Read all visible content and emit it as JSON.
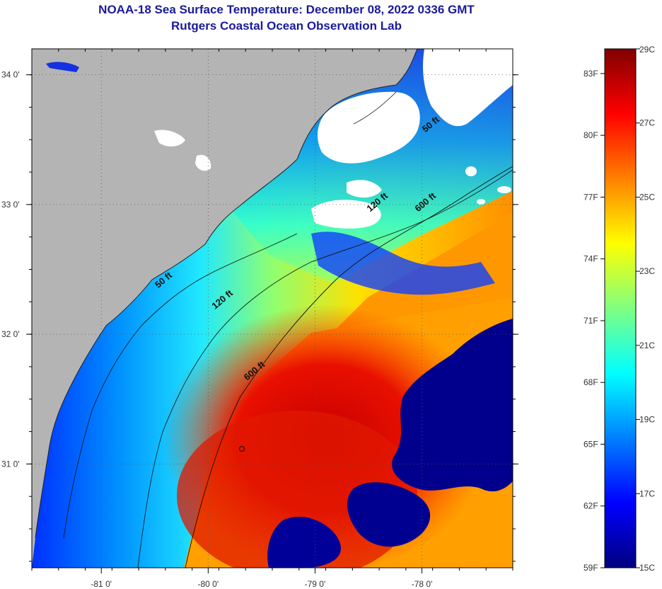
{
  "title": "NOAA-18 Sea Surface Temperature:  December 08, 2022 0336 GMT",
  "subtitle": "Rutgers Coastal Ocean Observation Lab",
  "map": {
    "lon_range": [
      -81.65,
      -77.15
    ],
    "lat_range": [
      30.2,
      34.2
    ],
    "lon_ticks": [
      {
        "value": -81,
        "label": "-81 0'"
      },
      {
        "value": -80,
        "label": "-80 0'"
      },
      {
        "value": -79,
        "label": "-79 0'"
      },
      {
        "value": -78,
        "label": "-78 0'"
      }
    ],
    "lat_ticks": [
      {
        "value": 34,
        "label": "34 0'"
      },
      {
        "value": 33,
        "label": "33 0'"
      },
      {
        "value": 32,
        "label": "32 0'"
      },
      {
        "value": 31,
        "label": "31 0'"
      }
    ],
    "contour_labels": [
      {
        "text": "50 ft",
        "lon": -77.9,
        "lat": 33.6
      },
      {
        "text": "120 ft",
        "lon": -78.4,
        "lat": 33.0
      },
      {
        "text": "600 ft",
        "lon": -77.95,
        "lat": 33.0
      },
      {
        "text": "50 ft",
        "lon": -80.4,
        "lat": 32.4
      },
      {
        "text": "120 ft",
        "lon": -79.85,
        "lat": 32.25
      },
      {
        "text": "600 ft",
        "lon": -79.55,
        "lat": 31.7
      }
    ],
    "colors": {
      "land": "#b4b4b4",
      "cloud": "#ffffff"
    }
  },
  "colorbar": {
    "min_c": 15,
    "max_c": 29,
    "fahrenheit_labels": [
      "83F",
      "80F",
      "77F",
      "74F",
      "71F",
      "68F",
      "65F",
      "62F",
      "59F"
    ],
    "celsius_labels": [
      "29C",
      "27C",
      "25C",
      "23C",
      "21C",
      "19C",
      "17C",
      "15C"
    ],
    "stops": [
      "#000080",
      "#0000ff",
      "#0080ff",
      "#00ffff",
      "#80ff80",
      "#ffff00",
      "#ff8000",
      "#ff0000",
      "#800000"
    ]
  }
}
